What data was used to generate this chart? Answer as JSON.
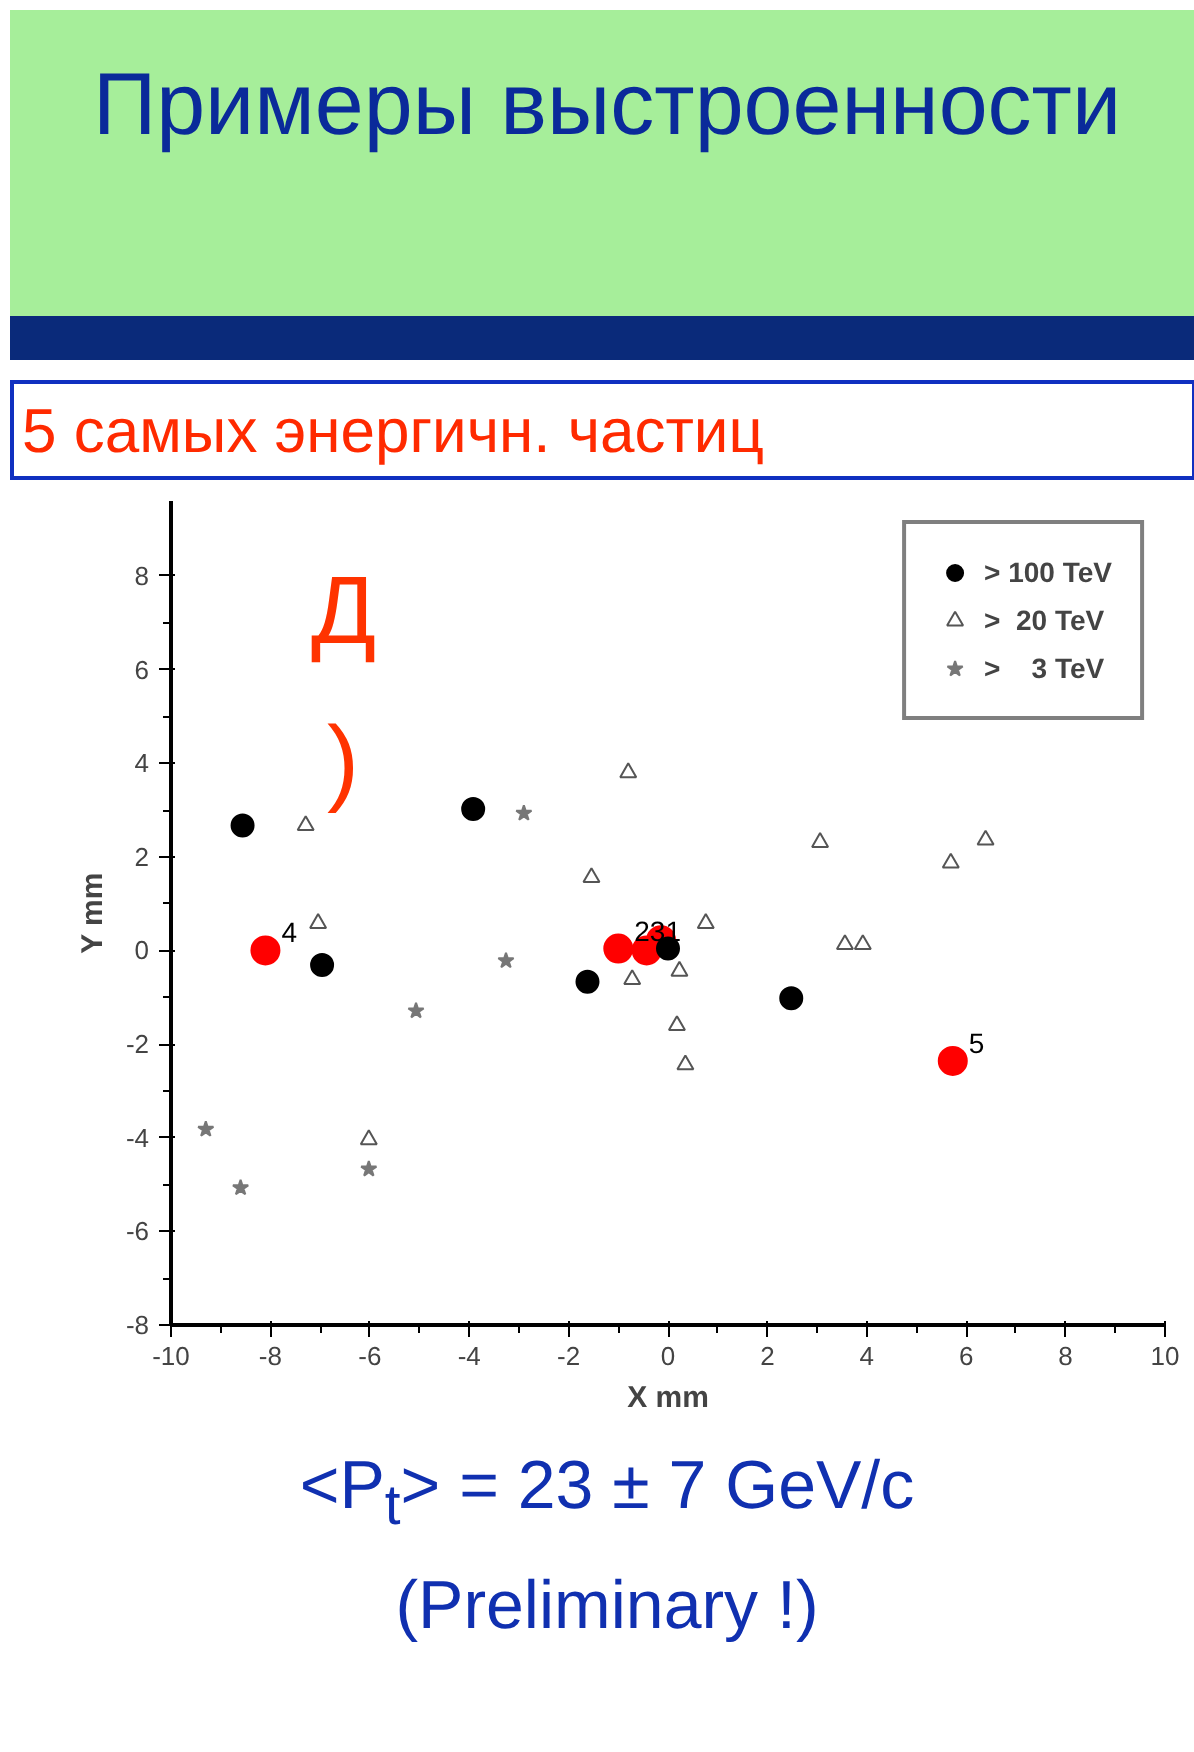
{
  "chart_data": {
    "type": "scatter",
    "title": "Примеры выстроенности",
    "subtitle": "5 самых энергичн. частиц",
    "xlabel": "X mm",
    "ylabel": "Y mm",
    "xlim": [
      -10,
      10
    ],
    "ylim": [
      -8,
      9.6
    ],
    "xticks": [
      -10,
      -8,
      -6,
      -4,
      -2,
      0,
      2,
      4,
      6,
      8,
      10
    ],
    "yticks": [
      -8,
      -6,
      -4,
      -2,
      0,
      2,
      4,
      6,
      8
    ],
    "grid": false,
    "legend": "top right",
    "series": [
      {
        "name": "> 100 TeV",
        "color": "#000000",
        "marker": "circle",
        "x": [
          -8.56,
          -6.96,
          -3.92,
          -1.62,
          0,
          2.48
        ],
        "values": [
          2.67,
          -0.31,
          3.02,
          -0.67,
          0.04,
          -1.02
        ]
      },
      {
        "name": ">  20 TeV",
        "color": "#555555",
        "marker": "triangle",
        "x": [
          -7.29,
          -7.04,
          -0.8,
          -1.54,
          0.76,
          3.06,
          5.69,
          6.39,
          3.56,
          3.92,
          -0.72,
          0.23,
          0.18,
          0.35,
          -6.02
        ],
        "values": [
          2.67,
          0.58,
          3.8,
          1.56,
          0.58,
          2.31,
          1.87,
          2.36,
          0.13,
          0.13,
          -0.62,
          -0.44,
          -1.6,
          -2.44,
          -4.04
        ]
      },
      {
        "name": ">    3 TeV",
        "color": "#777777",
        "marker": "star",
        "x": [
          -2.9,
          -3.26,
          -5.07,
          -9.3,
          -8.6,
          -6.02
        ],
        "values": [
          2.93,
          -0.22,
          -1.29,
          -3.82,
          -5.07,
          -4.67
        ]
      },
      {
        "color": "#ff0000",
        "marker": "circle",
        "x": [
          -8.1,
          -1.0,
          -0.43,
          -0.14,
          5.73
        ],
        "values": [
          0.0,
          0.04,
          0.0,
          0.22,
          -2.36
        ]
      }
    ],
    "annotations": [
      {
        "text": "4",
        "x": -8.1,
        "y": 0.0
      },
      {
        "text": "231",
        "x": -1.0,
        "y": 0.04
      },
      {
        "text": "5",
        "x": 5.73,
        "y": -2.36
      },
      "Д",
      ")",
      "<P$_{t}$> = 23 ± 7 GeV/c",
      "(Preliminary !)"
    ]
  }
}
